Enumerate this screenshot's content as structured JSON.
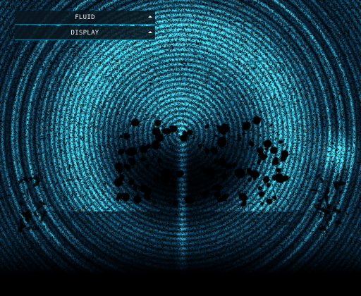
{
  "gui": {
    "folders": [
      {
        "label": "FLUID",
        "icon": "chevron-up-icon"
      },
      {
        "label": "DISPLAY",
        "icon": "chevron-up-icon"
      }
    ]
  },
  "colors": {
    "background": "#000000",
    "fluid_core": "#00e5ff",
    "fluid_deep": "#0066cc",
    "panel_bg": "#0a161e",
    "panel_accent": "#00d2ff"
  }
}
